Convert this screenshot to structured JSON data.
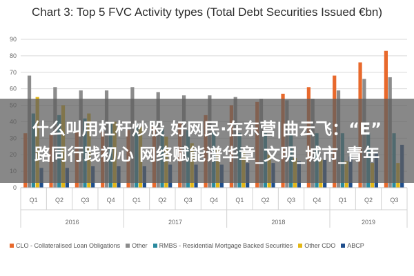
{
  "overlay": {
    "line1": "什么叫用杠杆炒股 好网民·在东营|曲云飞：“E”",
    "line2": "路同行践初心 网络赋能谱华章_文明_城市_青年"
  },
  "chart_data": {
    "type": "bar",
    "title": "Chart 3: Top 5 FVC Activity types (Total Debt Securities Issued €bn)",
    "xlabel": "",
    "ylabel": "",
    "ylim": [
      0,
      90
    ],
    "yticks": [
      0,
      10,
      20,
      30,
      40,
      50,
      60,
      70,
      80,
      90
    ],
    "grid": true,
    "legend_position": "bottom",
    "categories": [
      "Q1",
      "Q2",
      "Q3",
      "Q4",
      "Q1",
      "Q2",
      "Q3",
      "Q4",
      "Q1",
      "Q2",
      "Q3",
      "Q4",
      "Q1",
      "Q2",
      "Q3"
    ],
    "groups": [
      {
        "label": "2016",
        "span": 4
      },
      {
        "label": "2017",
        "span": 4
      },
      {
        "label": "2018",
        "span": 4
      },
      {
        "label": "2019",
        "span": 3
      }
    ],
    "series": [
      {
        "name": "CLO - Collateralised Loan Obligations",
        "color": "#e8692c",
        "values": [
          33,
          32,
          34,
          34,
          35,
          37,
          40,
          44,
          50,
          52,
          57,
          61,
          68,
          76,
          83
        ]
      },
      {
        "name": "Other",
        "color": "#8c8c8c",
        "values": [
          68,
          61,
          59,
          59,
          61,
          58,
          56,
          56,
          55,
          54,
          53,
          54,
          59,
          66,
          67
        ]
      },
      {
        "name": "RMBS - Residential Mortgage Backed Securities",
        "color": "#2a8a9e",
        "values": [
          45,
          44,
          42,
          40,
          39,
          36,
          35,
          34,
          33,
          33,
          33,
          33,
          33,
          33,
          33
        ]
      },
      {
        "name": "Other CDO",
        "color": "#e4b714",
        "values": [
          55,
          50,
          45,
          40,
          37,
          31,
          27,
          24,
          22,
          20,
          18,
          17,
          16,
          15,
          15
        ]
      },
      {
        "name": "ABCP",
        "color": "#1f4e8c",
        "values": [
          12,
          12,
          13,
          13,
          13,
          14,
          14,
          14,
          15,
          15,
          16,
          17,
          19,
          21,
          26
        ]
      }
    ]
  }
}
